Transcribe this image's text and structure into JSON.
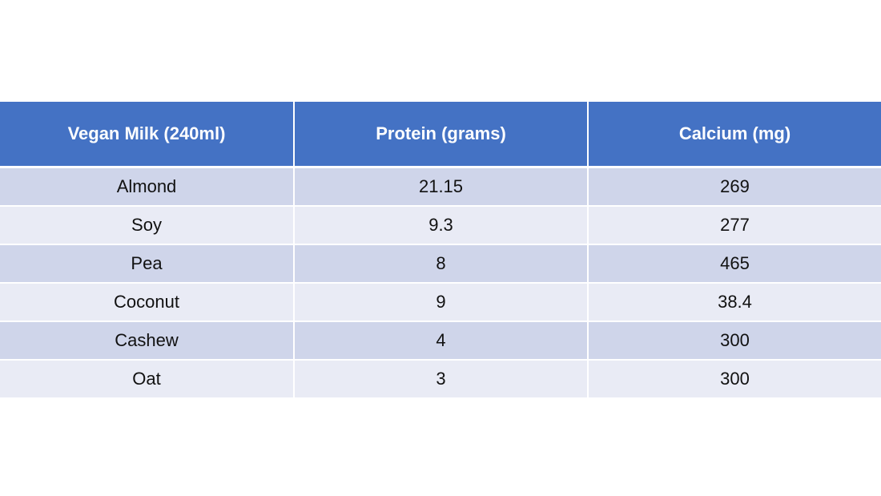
{
  "table": {
    "headers": [
      "Vegan Milk (240ml)",
      "Protein (grams)",
      "Calcium (mg)"
    ],
    "rows": [
      [
        "Almond",
        "21.15",
        "269"
      ],
      [
        "Soy",
        "9.3",
        "277"
      ],
      [
        "Pea",
        "8",
        "465"
      ],
      [
        "Coconut",
        "9",
        "38.4"
      ],
      [
        "Cashew",
        "4",
        "300"
      ],
      [
        "Oat",
        "3",
        "300"
      ]
    ]
  },
  "colors": {
    "header_bg": "#4472c4",
    "row_odd_bg": "#cfd5ea",
    "row_even_bg": "#e9ebf5",
    "header_text": "#ffffff"
  }
}
